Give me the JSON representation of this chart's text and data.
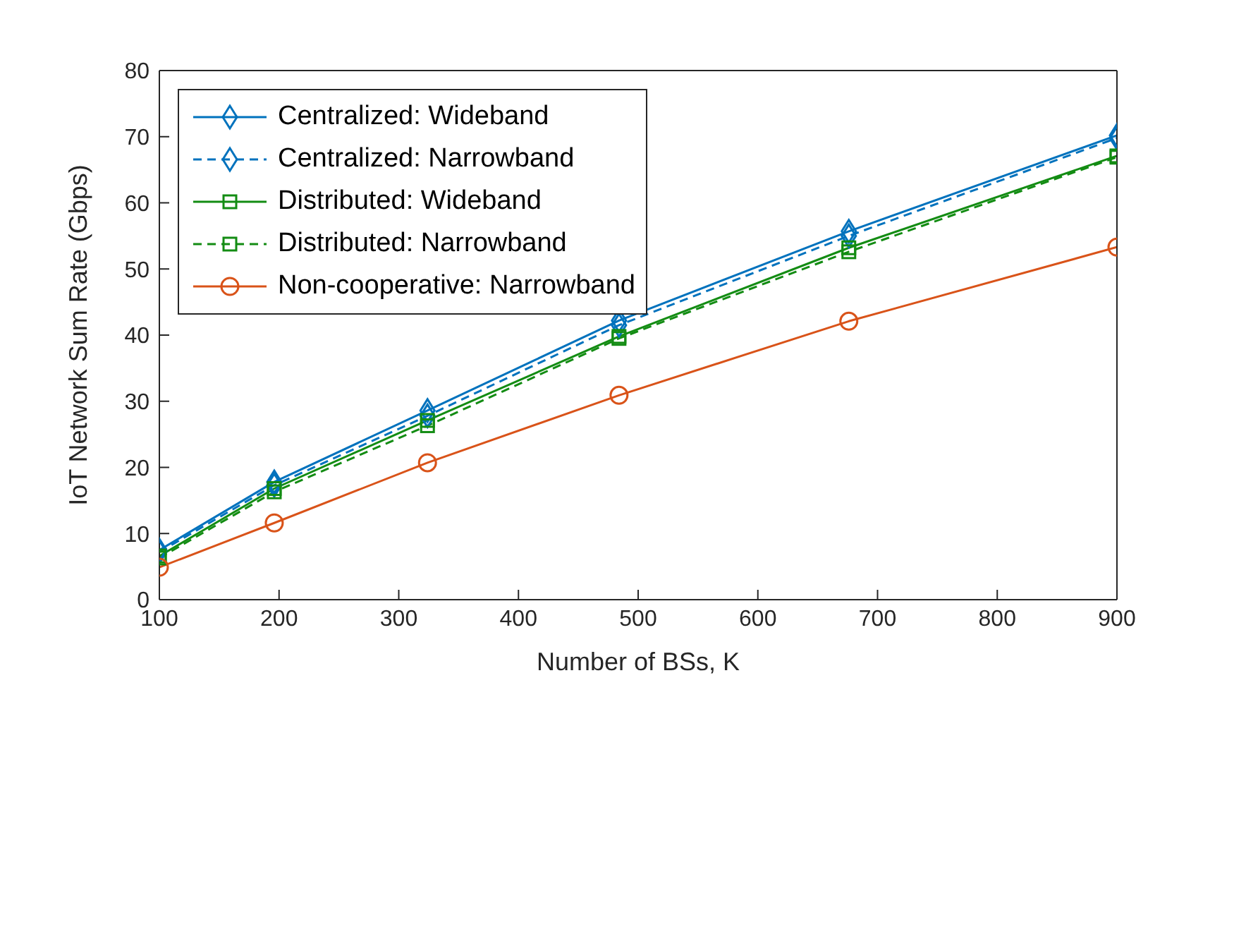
{
  "chart_data": {
    "type": "line",
    "xlabel": "Number of BSs, K",
    "ylabel": "IoT Network Sum Rate (Gbps)",
    "x": [
      100,
      196,
      324,
      484,
      676,
      900
    ],
    "xlim": [
      100,
      900
    ],
    "xticks": [
      100,
      200,
      300,
      400,
      500,
      600,
      700,
      800,
      900
    ],
    "ylim": [
      0,
      80
    ],
    "yticks": [
      0,
      10,
      20,
      30,
      40,
      50,
      60,
      70,
      80
    ],
    "legend": "top left",
    "series": [
      {
        "name": "Centralized: Wideband",
        "color": "#0072bd",
        "marker": "diamond",
        "line_style": "solid",
        "values": [
          7.5,
          17.8,
          28.6,
          42.2,
          55.7,
          70.2
        ]
      },
      {
        "name": "Centralized: Narrowband",
        "color": "#0072bd",
        "marker": "diamond",
        "line_style": "dashed",
        "values": [
          7.2,
          17.3,
          27.8,
          41.5,
          55.0,
          69.8
        ]
      },
      {
        "name": "Distributed: Wideband",
        "color": "#138c13",
        "marker": "square",
        "line_style": "solid",
        "values": [
          6.6,
          16.8,
          27.1,
          39.8,
          53.2,
          67.1
        ]
      },
      {
        "name": "Distributed: Narrowband",
        "color": "#138c13",
        "marker": "square",
        "line_style": "dashed",
        "values": [
          6.3,
          16.3,
          26.3,
          39.5,
          52.6,
          66.9
        ]
      },
      {
        "name": "Non-cooperative: Narrowband",
        "color": "#d95319",
        "marker": "circle",
        "line_style": "solid",
        "values": [
          4.9,
          11.6,
          20.7,
          30.9,
          42.1,
          53.3
        ]
      }
    ]
  }
}
